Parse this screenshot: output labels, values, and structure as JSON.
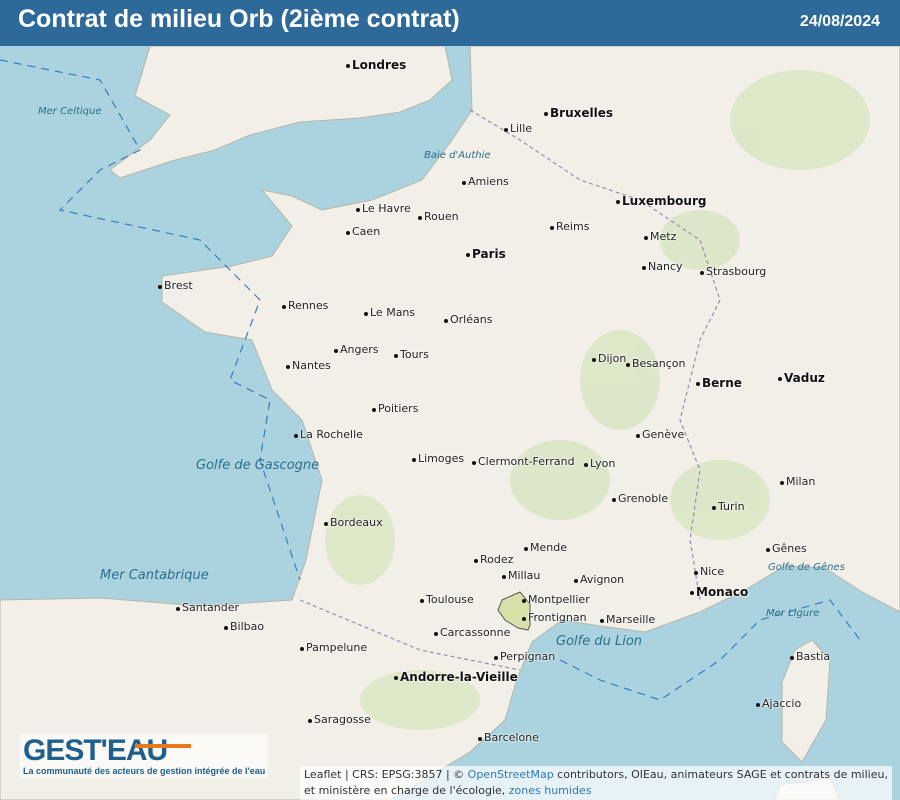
{
  "header": {
    "title": "Contrat de milieu Orb (2ième contrat)",
    "date": "24/08/2024"
  },
  "colors": {
    "header": "#2e6a99",
    "sea": "#aad3df",
    "land": "#f2efe9",
    "highlight": "#d8e0a8",
    "accent": "#e87a1e"
  },
  "logo": {
    "name": "GEST'EAU",
    "tagline": "La communauté des acteurs de gestion intégrée de l'eau"
  },
  "attribution": {
    "prefix": "Leaflet | CRS: EPSG:3857 | © ",
    "osm": "OpenStreetMap",
    "text": " contributors, OIEau, animateurs SAGE et contrats de milieu, et ministère en charge de l'écologie, ",
    "zones": "zones humides"
  },
  "seas": [
    "Golfe de Gascogne",
    "Mer Cantabrique",
    "Golfe du Lion",
    "Mer Celtique",
    "Baie d'Authie",
    "Golfe de Gênes",
    "Mer Ligure"
  ],
  "cities": [
    {
      "n": "Londres",
      "b": true
    },
    {
      "n": "Paris",
      "b": true
    },
    {
      "n": "Bruxelles",
      "b": true
    },
    {
      "n": "Luxembourg",
      "b": true
    },
    {
      "n": "Berne",
      "b": true
    },
    {
      "n": "Monaco",
      "b": true
    },
    {
      "n": "Andorre-la-Vieille",
      "b": true
    },
    {
      "n": "Vaduz",
      "b": true
    },
    {
      "n": "Brest"
    },
    {
      "n": "Rennes"
    },
    {
      "n": "Nantes"
    },
    {
      "n": "Angers"
    },
    {
      "n": "Tours"
    },
    {
      "n": "Orléans"
    },
    {
      "n": "Le Mans"
    },
    {
      "n": "Caen"
    },
    {
      "n": "Le Havre"
    },
    {
      "n": "Rouen"
    },
    {
      "n": "Amiens"
    },
    {
      "n": "Lille"
    },
    {
      "n": "Reims"
    },
    {
      "n": "Metz"
    },
    {
      "n": "Nancy"
    },
    {
      "n": "Strasbourg"
    },
    {
      "n": "Dijon"
    },
    {
      "n": "Besançon"
    },
    {
      "n": "Lyon"
    },
    {
      "n": "Grenoble"
    },
    {
      "n": "Clermont-Ferrand"
    },
    {
      "n": "Limoges"
    },
    {
      "n": "Poitiers"
    },
    {
      "n": "La Rochelle"
    },
    {
      "n": "Bordeaux"
    },
    {
      "n": "Toulouse"
    },
    {
      "n": "Montpellier"
    },
    {
      "n": "Avignon"
    },
    {
      "n": "Marseille"
    },
    {
      "n": "Nice"
    },
    {
      "n": "Perpignan"
    },
    {
      "n": "Barcelone"
    },
    {
      "n": "Genève"
    },
    {
      "n": "Turin"
    },
    {
      "n": "Milan"
    },
    {
      "n": "Gênes"
    },
    {
      "n": "Ajaccio"
    },
    {
      "n": "Bastia"
    },
    {
      "n": "Santander"
    },
    {
      "n": "Bilbao"
    },
    {
      "n": "Saragosse"
    },
    {
      "n": "Pampelune"
    },
    {
      "n": "Millau"
    },
    {
      "n": "Frontignan"
    },
    {
      "n": "Carcassonne"
    },
    {
      "n": "Mende"
    },
    {
      "n": "Rodez"
    }
  ]
}
